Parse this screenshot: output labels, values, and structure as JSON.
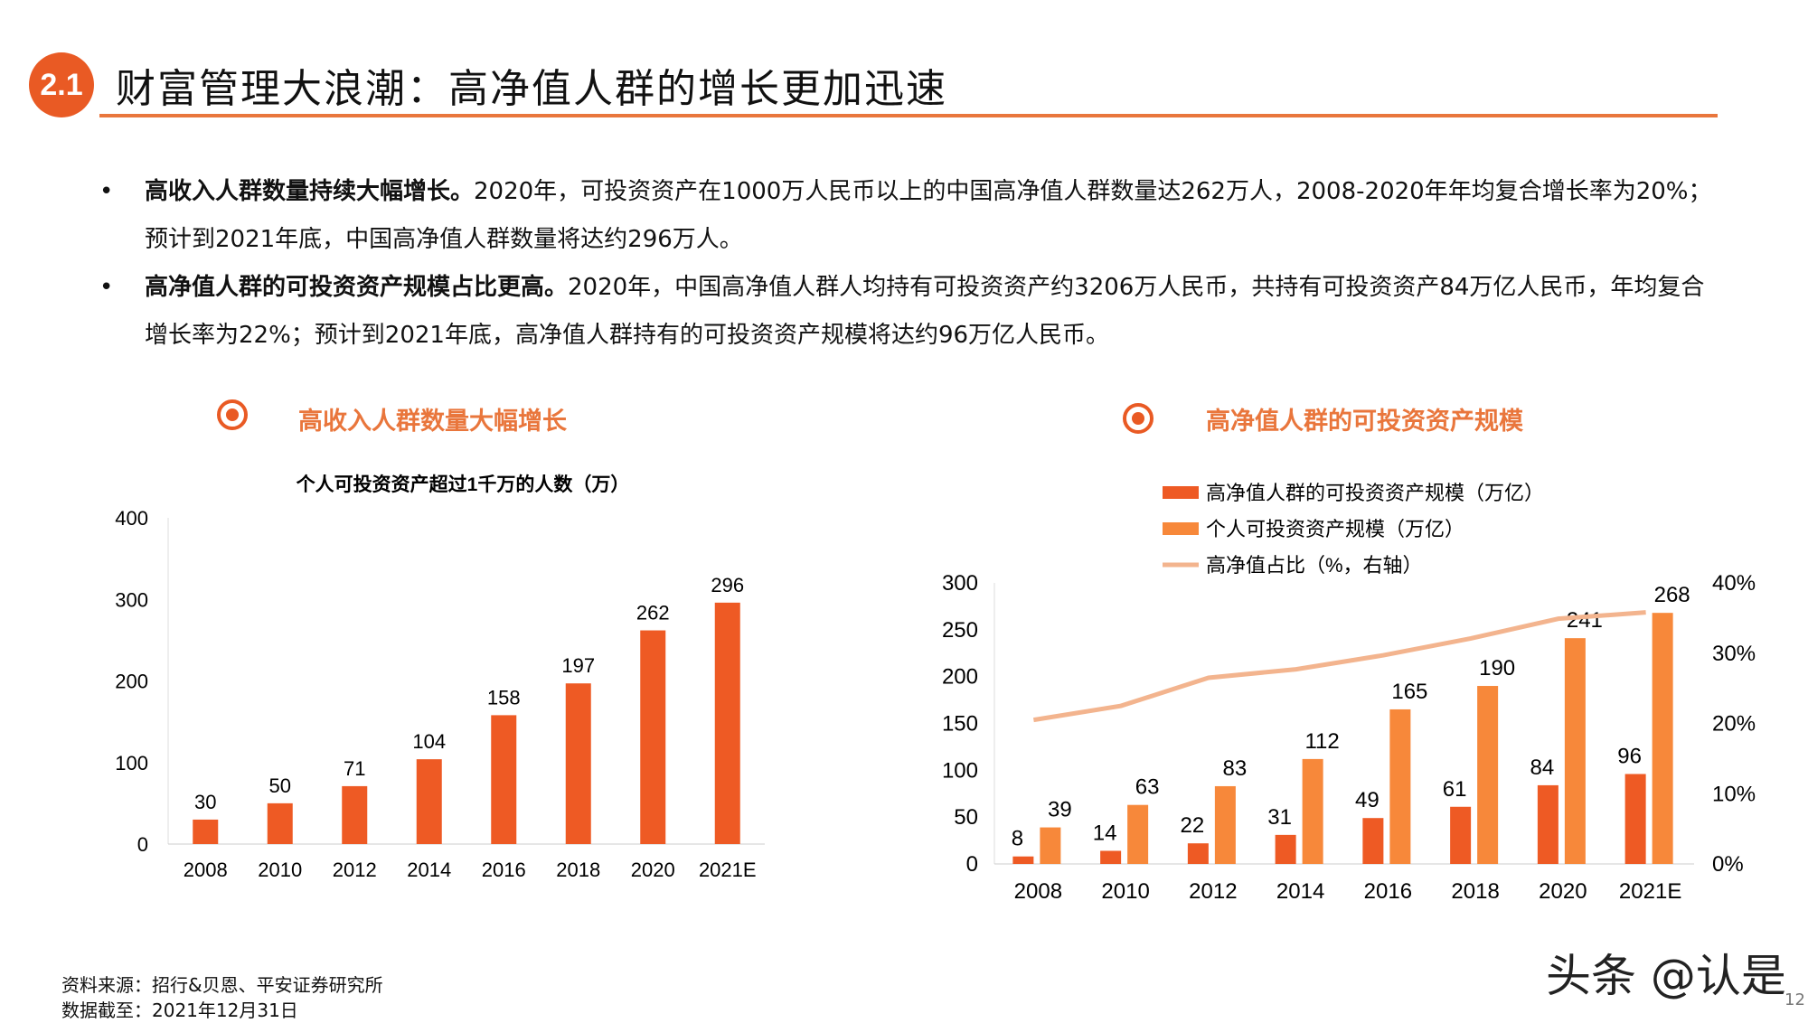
{
  "header": {
    "badge": "2.1",
    "title": "财富管理大浪潮：高净值人群的增长更加迅速"
  },
  "bullets": [
    {
      "bold": "高收入人群数量持续大幅增长。",
      "text": "2020年，可投资资产在1000万人民币以上的中国高净值人群数量达262万人，2008-2020年年均复合增长率为20%；预计到2021年底，中国高净值人群数量将达约296万人。"
    },
    {
      "bold": "高净值人群的可投资资产规模占比更高。",
      "text": "2020年，中国高净值人群人均持有可投资资产约3206万人民币，共持有可投资资产84万亿人民币，年均复合增长率为22%；预计到2021年底，高净值人群持有的可投资资产规模将达约96万亿人民币。"
    }
  ],
  "sections": {
    "left": "高收入人群数量大幅增长",
    "right": "高净值人群的可投资资产规模"
  },
  "chart_data": [
    {
      "type": "bar",
      "title": "个人可投资资产超过1千万的人数（万）",
      "categories": [
        "2008",
        "2010",
        "2012",
        "2014",
        "2016",
        "2018",
        "2020",
        "2021E"
      ],
      "values": [
        30,
        50,
        71,
        104,
        158,
        197,
        262,
        296
      ],
      "ylim": [
        0,
        400
      ],
      "yticks": [
        "0",
        "100",
        "200",
        "300",
        "400"
      ],
      "color": "#ee5a24"
    },
    {
      "type": "bar",
      "categories": [
        "2008",
        "2010",
        "2012",
        "2014",
        "2016",
        "2018",
        "2020",
        "2021E"
      ],
      "series": [
        {
          "name": "高净值人群的可投资资产规模（万亿）",
          "values": [
            8,
            14,
            22,
            31,
            49,
            61,
            84,
            96
          ],
          "color": "#ee5a24",
          "axis": "left"
        },
        {
          "name": "个人可投资资产规模（万亿）",
          "values": [
            39,
            63,
            83,
            112,
            165,
            190,
            241,
            268
          ],
          "color": "#f7883a",
          "axis": "left"
        },
        {
          "name": "高净值占比（%，右轴）",
          "type": "line",
          "values": [
            20.5,
            22.5,
            26.5,
            27.7,
            29.7,
            32.1,
            34.9,
            35.8
          ],
          "color": "#f3b48e",
          "axis": "right"
        }
      ],
      "ylim": [
        0,
        300
      ],
      "yticks": [
        "0",
        "50",
        "100",
        "150",
        "200",
        "250",
        "300"
      ],
      "y2lim": [
        0,
        40
      ],
      "y2ticks": [
        "0%",
        "10%",
        "20%",
        "30%",
        "40%"
      ],
      "legend": "top"
    }
  ],
  "footer": {
    "source": "资料来源：招行&贝恩、平安证券研究所",
    "date": "数据截至：2021年12月31日"
  },
  "watermark": "头条 @认是",
  "page_number": "12"
}
